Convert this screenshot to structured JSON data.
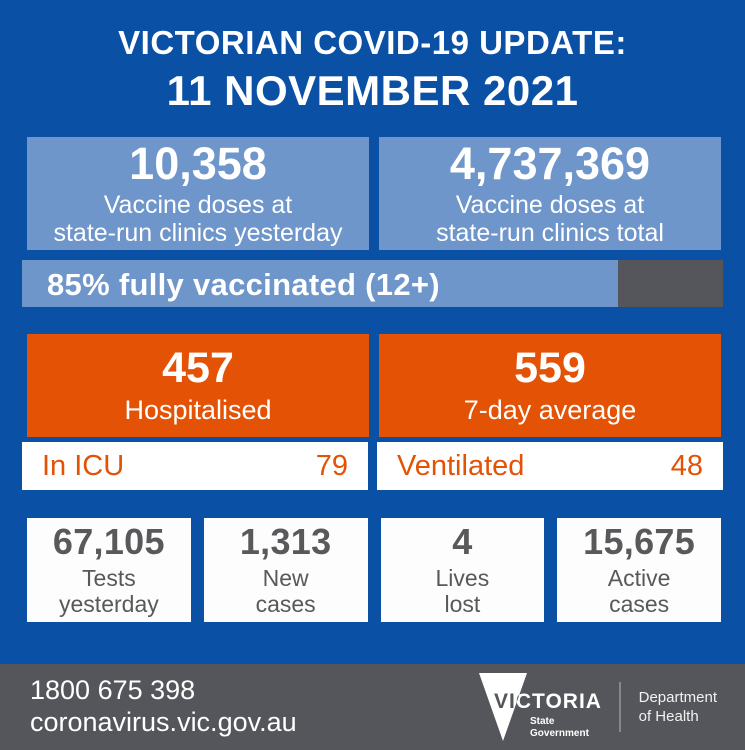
{
  "colors": {
    "background": "#0a51a5",
    "light_blue": "#6f96ca",
    "orange": "#e35205",
    "dark_gray": "#55565b",
    "stat_text": "#58595b",
    "white": "#ffffff"
  },
  "title": {
    "line1": "VICTORIAN COVID-19 UPDATE:",
    "line2": "11 NOVEMBER 2021"
  },
  "vaccine_boxes": [
    {
      "value": "10,358",
      "label_line1": "Vaccine doses at",
      "label_line2": "state-run clinics yesterday"
    },
    {
      "value": "4,737,369",
      "label_line1": "Vaccine doses at",
      "label_line2": "state-run clinics total"
    }
  ],
  "vaccination_progress": {
    "label": "85% fully vaccinated (12+)",
    "percent": 85
  },
  "hospital_boxes": [
    {
      "value": "457",
      "label": "Hospitalised"
    },
    {
      "value": "559",
      "label": "7-day average"
    }
  ],
  "detail_strips": [
    {
      "label": "In ICU",
      "value": "79"
    },
    {
      "label": "Ventilated",
      "value": "48"
    }
  ],
  "stat_boxes": [
    {
      "value": "67,105",
      "label_line1": "Tests",
      "label_line2": "yesterday"
    },
    {
      "value": "1,313",
      "label_line1": "New",
      "label_line2": "cases"
    },
    {
      "value": "4",
      "label_line1": "Lives",
      "label_line2": "lost"
    },
    {
      "value": "15,675",
      "label_line1": "Active",
      "label_line2": "cases"
    }
  ],
  "footer": {
    "phone": "1800 675 398",
    "website": "coronavirus.vic.gov.au",
    "logo": {
      "brand": "VICTORIA",
      "sub_line1": "State",
      "sub_line2": "Government"
    },
    "department_line1": "Department",
    "department_line2": "of Health"
  }
}
